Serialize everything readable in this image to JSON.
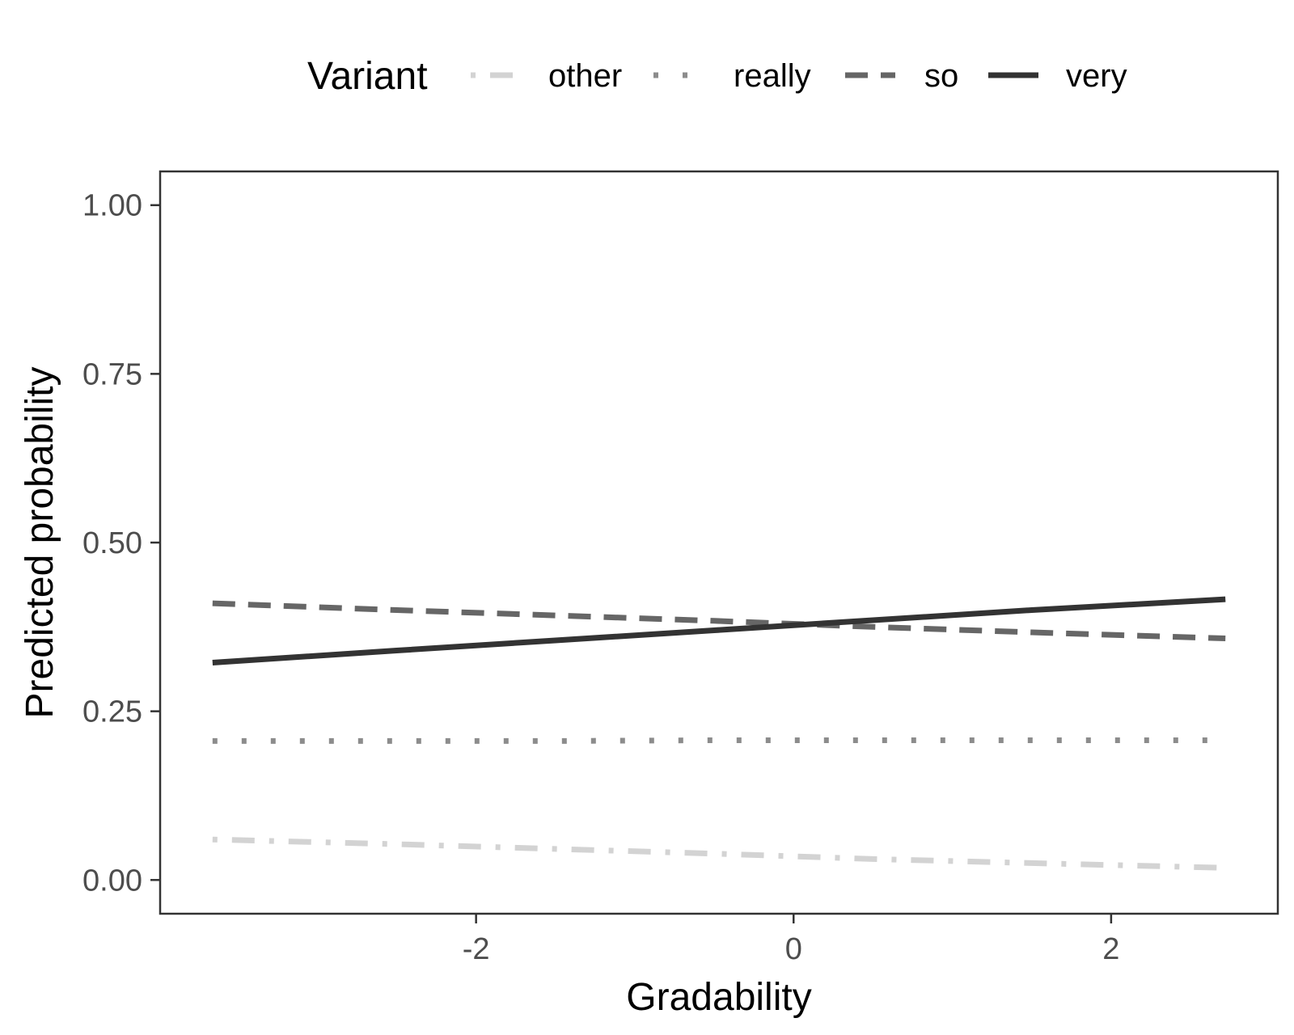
{
  "chart_data": {
    "type": "line",
    "title": "",
    "xlabel": "Gradability",
    "ylabel": "Predicted probability",
    "xlim": [
      -3.99,
      3.05
    ],
    "ylim": [
      -0.05,
      1.05
    ],
    "x_ticks": [
      -2,
      0,
      2
    ],
    "x_tick_labels": [
      "-2",
      "0",
      "2"
    ],
    "y_ticks": [
      0,
      0.25,
      0.5,
      0.75,
      1
    ],
    "y_tick_labels": [
      "0.00",
      "0.25",
      "0.50",
      "0.75",
      "1.00"
    ],
    "grid": false,
    "legend": {
      "title": "Variant",
      "position": "top"
    },
    "series": [
      {
        "name": "other",
        "color": "#d3d3d3",
        "dash": "dashdot",
        "x": [
          -3.66,
          -2.5,
          -1.5,
          -0.5,
          0.5,
          1.5,
          2.72
        ],
        "y": [
          0.06,
          0.053,
          0.046,
          0.039,
          0.031,
          0.025,
          0.018
        ]
      },
      {
        "name": "really",
        "color": "#8c8c8c",
        "dash": "dotted",
        "x": [
          -3.66,
          -2.5,
          -1.5,
          -0.5,
          0.5,
          1.5,
          2.72
        ],
        "y": [
          0.206,
          0.206,
          0.206,
          0.207,
          0.207,
          0.207,
          0.207
        ]
      },
      {
        "name": "so",
        "color": "#666666",
        "dash": "dashed",
        "x": [
          -3.66,
          -2.5,
          -1.5,
          -0.5,
          0.5,
          1.5,
          2.72
        ],
        "y": [
          0.41,
          0.4,
          0.392,
          0.384,
          0.375,
          0.367,
          0.358
        ]
      },
      {
        "name": "very",
        "color": "#333333",
        "dash": "solid",
        "x": [
          -3.66,
          -2.5,
          -1.5,
          -0.5,
          0.5,
          1.5,
          2.72
        ],
        "y": [
          0.322,
          0.34,
          0.355,
          0.37,
          0.385,
          0.4,
          0.416
        ]
      }
    ]
  }
}
